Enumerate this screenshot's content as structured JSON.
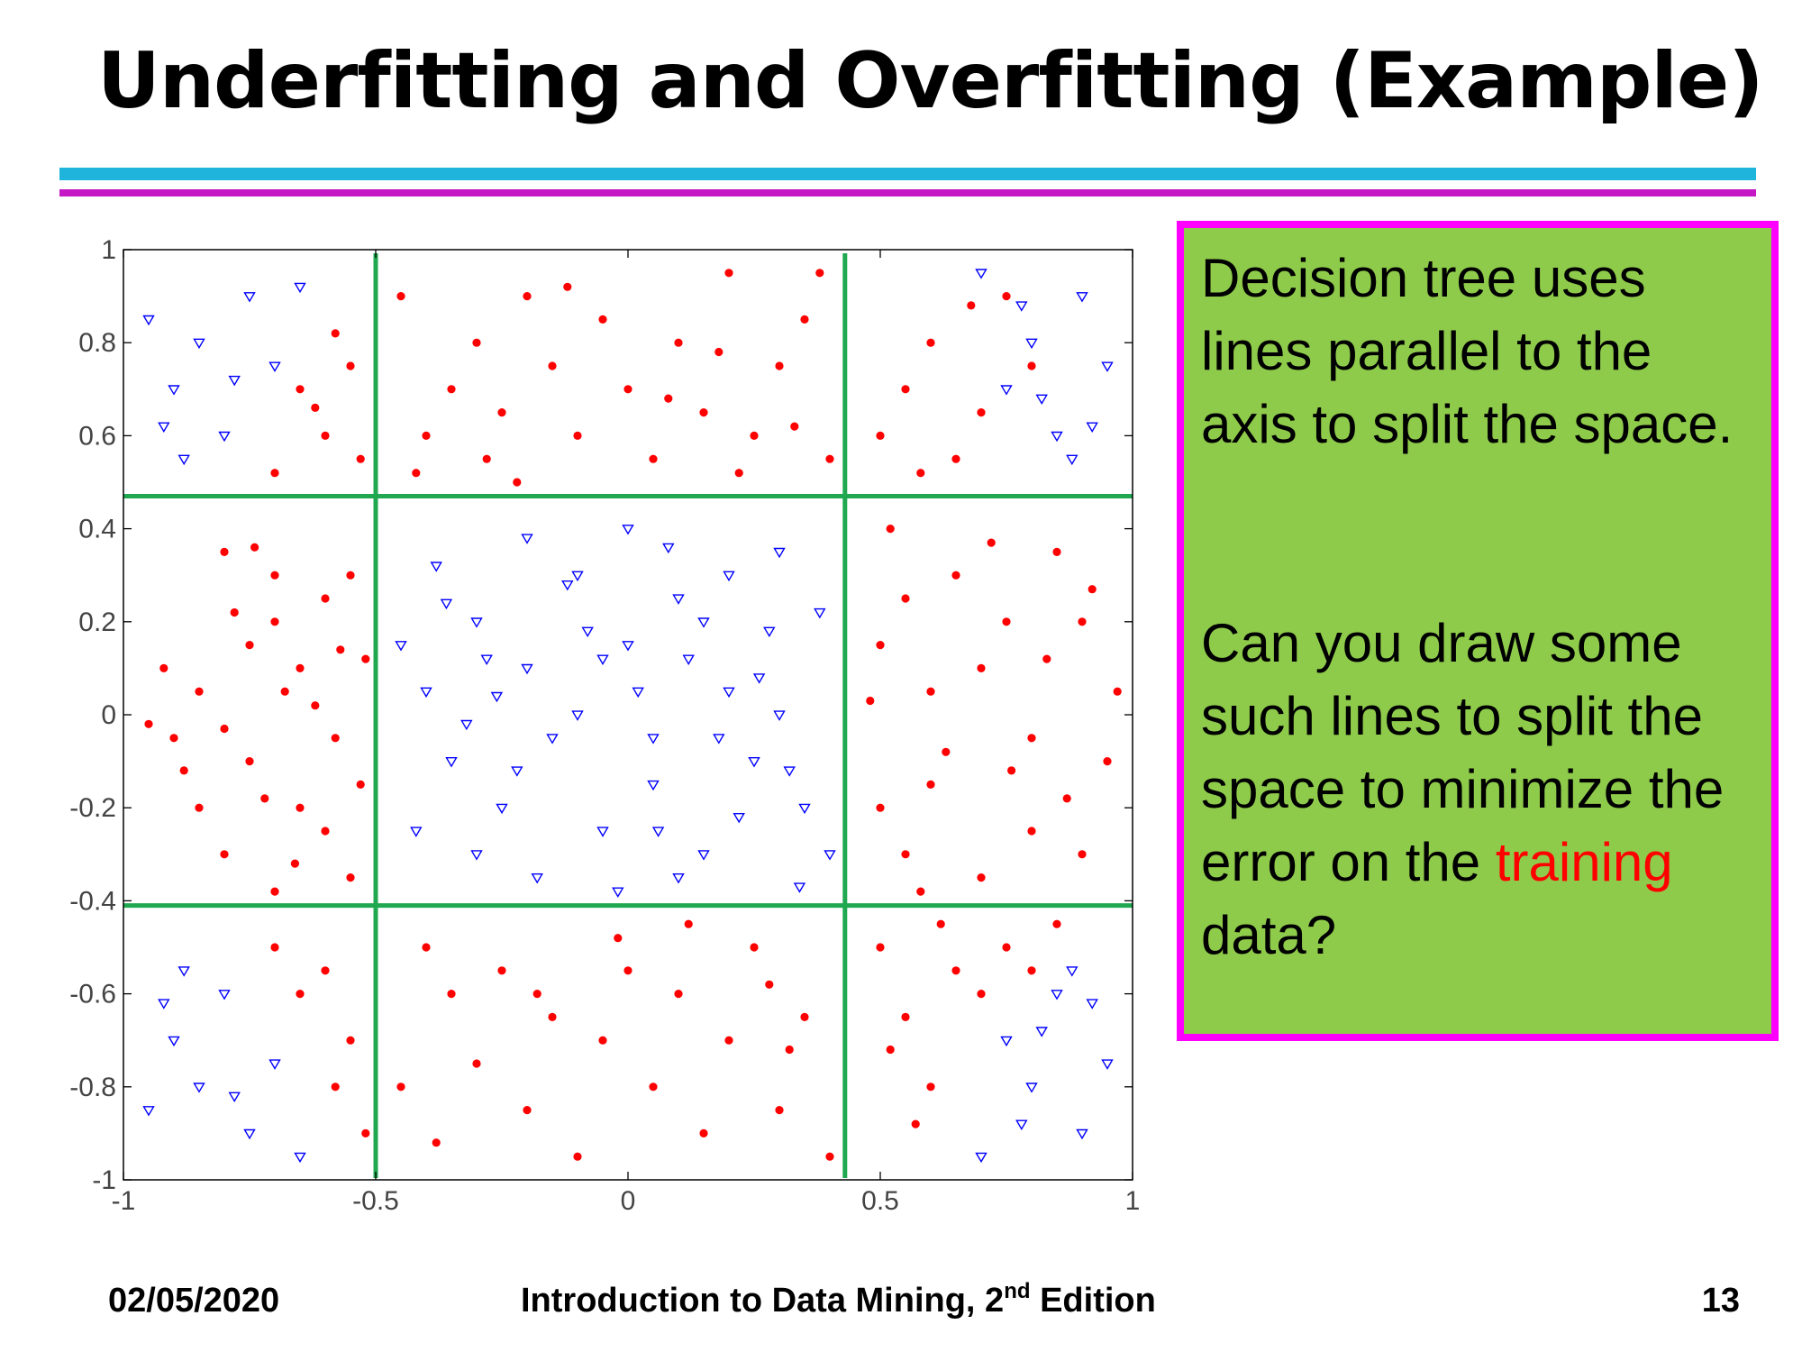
{
  "slide": {
    "title": "Underfitting and Overfitting (Example)",
    "accent_colors": {
      "cyan_rule": "#1eb4dc",
      "magenta_rule": "#c419c4"
    }
  },
  "callout": {
    "paragraph1": "Decision tree uses lines parallel to the axis to split the space.",
    "paragraph2_before": "Can you draw some such lines to split the space to minimize the error on the ",
    "highlight": "training",
    "paragraph2_after": " data?",
    "background_color": "#8fcb4b",
    "border_color": "#ff00ff",
    "highlight_color": "#ff0000"
  },
  "footer": {
    "date": "02/05/2020",
    "book_before": "Introduction to Data Mining, 2",
    "book_sup": "nd",
    "book_after": " Edition",
    "page": "13"
  },
  "chart_data": {
    "type": "scatter",
    "xlim": [
      -1,
      1
    ],
    "ylim": [
      -1,
      1
    ],
    "xticks": [
      "-1",
      "-0.5",
      "0",
      "0.5",
      "1"
    ],
    "yticks": [
      "1",
      "0.8",
      "0.6",
      "0.4",
      "0.2",
      "0",
      "-0.2",
      "-0.4",
      "-0.6",
      "-0.8",
      "-1"
    ],
    "grid": false,
    "split_lines": {
      "color": "#1fa84f",
      "vertical_x": [
        -0.5,
        0.43
      ],
      "horizontal_y": [
        0.47,
        -0.41
      ]
    },
    "series": [
      {
        "marker": "dot",
        "color": "#ff0000",
        "region_rule": "outside the central box in the middle row and middle column bands",
        "points": [
          [
            -0.75,
            0.15
          ],
          [
            -0.7,
            0.2
          ],
          [
            -0.65,
            0.1
          ],
          [
            -0.6,
            0.25
          ],
          [
            -0.55,
            0.3
          ],
          [
            -0.8,
            0.35
          ],
          [
            -0.85,
            0.05
          ],
          [
            -0.9,
            -0.05
          ],
          [
            -0.75,
            -0.1
          ],
          [
            -0.65,
            -0.2
          ],
          [
            -0.6,
            -0.25
          ],
          [
            -0.55,
            -0.35
          ],
          [
            -0.8,
            -0.3
          ],
          [
            -0.85,
            -0.2
          ],
          [
            -0.7,
            0.3
          ],
          [
            -0.72,
            -0.18
          ],
          [
            -0.62,
            0.02
          ],
          [
            -0.58,
            -0.05
          ],
          [
            -0.92,
            0.1
          ],
          [
            -0.88,
            -0.12
          ],
          [
            -0.68,
            0.05
          ],
          [
            -0.78,
            0.22
          ],
          [
            -0.8,
            -0.03
          ],
          [
            -0.66,
            -0.32
          ],
          [
            -0.74,
            0.36
          ],
          [
            -0.57,
            0.14
          ],
          [
            -0.52,
            0.12
          ],
          [
            -0.53,
            -0.15
          ],
          [
            -0.7,
            -0.38
          ],
          [
            -0.95,
            -0.02
          ],
          [
            -0.6,
            0.6
          ],
          [
            -0.65,
            0.7
          ],
          [
            -0.55,
            0.75
          ],
          [
            -0.7,
            0.52
          ],
          [
            -0.58,
            0.82
          ],
          [
            -0.62,
            0.66
          ],
          [
            -0.53,
            0.55
          ],
          [
            -0.6,
            -0.55
          ],
          [
            -0.55,
            -0.7
          ],
          [
            -0.65,
            -0.6
          ],
          [
            -0.58,
            -0.8
          ],
          [
            -0.52,
            -0.9
          ],
          [
            -0.7,
            -0.5
          ],
          [
            -0.4,
            0.6
          ],
          [
            -0.35,
            0.7
          ],
          [
            -0.3,
            0.8
          ],
          [
            -0.25,
            0.65
          ],
          [
            -0.2,
            0.9
          ],
          [
            -0.15,
            0.75
          ],
          [
            -0.1,
            0.6
          ],
          [
            -0.05,
            0.85
          ],
          [
            0.0,
            0.7
          ],
          [
            0.05,
            0.55
          ],
          [
            0.1,
            0.8
          ],
          [
            0.15,
            0.65
          ],
          [
            0.2,
            0.95
          ],
          [
            0.25,
            0.6
          ],
          [
            0.3,
            0.75
          ],
          [
            0.35,
            0.85
          ],
          [
            0.4,
            0.55
          ],
          [
            -0.45,
            0.9
          ],
          [
            -0.42,
            0.52
          ],
          [
            -0.28,
            0.55
          ],
          [
            -0.12,
            0.92
          ],
          [
            0.08,
            0.68
          ],
          [
            0.22,
            0.52
          ],
          [
            0.33,
            0.62
          ],
          [
            0.38,
            0.95
          ],
          [
            0.18,
            0.78
          ],
          [
            -0.22,
            0.5
          ],
          [
            -0.4,
            -0.5
          ],
          [
            -0.35,
            -0.6
          ],
          [
            -0.3,
            -0.75
          ],
          [
            -0.25,
            -0.55
          ],
          [
            -0.2,
            -0.85
          ],
          [
            -0.15,
            -0.65
          ],
          [
            -0.1,
            -0.95
          ],
          [
            -0.05,
            -0.7
          ],
          [
            0.0,
            -0.55
          ],
          [
            0.05,
            -0.8
          ],
          [
            0.1,
            -0.6
          ],
          [
            0.15,
            -0.9
          ],
          [
            0.2,
            -0.7
          ],
          [
            0.25,
            -0.5
          ],
          [
            0.3,
            -0.85
          ],
          [
            0.35,
            -0.65
          ],
          [
            0.4,
            -0.95
          ],
          [
            -0.45,
            -0.8
          ],
          [
            -0.38,
            -0.92
          ],
          [
            0.12,
            -0.45
          ],
          [
            -0.02,
            -0.48
          ],
          [
            0.28,
            -0.58
          ],
          [
            0.32,
            -0.72
          ],
          [
            -0.18,
            -0.6
          ],
          [
            0.5,
            0.15
          ],
          [
            0.55,
            0.25
          ],
          [
            0.6,
            0.05
          ],
          [
            0.65,
            0.3
          ],
          [
            0.7,
            0.1
          ],
          [
            0.75,
            0.2
          ],
          [
            0.8,
            -0.05
          ],
          [
            0.85,
            0.35
          ],
          [
            0.9,
            0.2
          ],
          [
            0.95,
            -0.1
          ],
          [
            0.5,
            -0.2
          ],
          [
            0.55,
            -0.3
          ],
          [
            0.6,
            -0.15
          ],
          [
            0.7,
            -0.35
          ],
          [
            0.8,
            -0.25
          ],
          [
            0.9,
            -0.3
          ],
          [
            0.52,
            0.4
          ],
          [
            0.63,
            -0.08
          ],
          [
            0.72,
            0.37
          ],
          [
            0.83,
            0.12
          ],
          [
            0.92,
            0.27
          ],
          [
            0.58,
            -0.38
          ],
          [
            0.76,
            -0.12
          ],
          [
            0.87,
            -0.18
          ],
          [
            0.97,
            0.05
          ],
          [
            0.48,
            0.03
          ],
          [
            0.5,
            0.6
          ],
          [
            0.55,
            0.7
          ],
          [
            0.6,
            0.8
          ],
          [
            0.65,
            0.55
          ],
          [
            0.7,
            0.65
          ],
          [
            0.75,
            0.9
          ],
          [
            0.8,
            0.75
          ],
          [
            0.58,
            0.52
          ],
          [
            0.68,
            0.88
          ],
          [
            0.5,
            -0.5
          ],
          [
            0.55,
            -0.65
          ],
          [
            0.6,
            -0.8
          ],
          [
            0.65,
            -0.55
          ],
          [
            0.7,
            -0.6
          ],
          [
            0.75,
            -0.5
          ],
          [
            0.8,
            -0.55
          ],
          [
            0.52,
            -0.72
          ],
          [
            0.62,
            -0.45
          ],
          [
            0.85,
            -0.45
          ],
          [
            0.57,
            -0.88
          ]
        ]
      },
      {
        "marker": "triangle-down",
        "color": "#0000ff",
        "points": [
          [
            -0.3,
            0.2
          ],
          [
            -0.2,
            0.1
          ],
          [
            -0.1,
            0.3
          ],
          [
            0.0,
            0.15
          ],
          [
            0.1,
            0.25
          ],
          [
            0.2,
            0.05
          ],
          [
            0.3,
            0.35
          ],
          [
            -0.35,
            -0.1
          ],
          [
            -0.25,
            -0.2
          ],
          [
            -0.15,
            -0.05
          ],
          [
            -0.05,
            -0.25
          ],
          [
            0.05,
            -0.15
          ],
          [
            0.15,
            -0.3
          ],
          [
            0.25,
            -0.1
          ],
          [
            0.35,
            -0.2
          ],
          [
            -0.4,
            0.05
          ],
          [
            -0.3,
            -0.3
          ],
          [
            0.0,
            0.4
          ],
          [
            0.1,
            -0.35
          ],
          [
            0.2,
            0.3
          ],
          [
            -0.1,
            0.0
          ],
          [
            0.3,
            0.0
          ],
          [
            -0.2,
            0.38
          ],
          [
            0.38,
            0.22
          ],
          [
            -0.42,
            -0.25
          ],
          [
            0.12,
            0.12
          ],
          [
            -0.28,
            0.12
          ],
          [
            0.22,
            -0.22
          ],
          [
            -0.08,
            0.18
          ],
          [
            0.05,
            -0.05
          ],
          [
            -0.45,
            0.15
          ],
          [
            0.4,
            -0.3
          ],
          [
            -0.18,
            -0.35
          ],
          [
            0.28,
            0.18
          ],
          [
            -0.38,
            0.32
          ],
          [
            0.08,
            0.36
          ],
          [
            0.18,
            -0.05
          ],
          [
            -0.32,
            -0.02
          ],
          [
            -0.02,
            -0.38
          ],
          [
            0.34,
            -0.37
          ],
          [
            -0.12,
            0.28
          ],
          [
            0.02,
            0.05
          ],
          [
            -0.22,
            -0.12
          ],
          [
            0.26,
            0.08
          ],
          [
            -0.05,
            0.12
          ],
          [
            0.15,
            0.2
          ],
          [
            -0.36,
            0.24
          ],
          [
            0.32,
            -0.12
          ],
          [
            -0.26,
            0.04
          ],
          [
            0.06,
            -0.25
          ],
          [
            -0.85,
            0.8
          ],
          [
            -0.8,
            0.6
          ],
          [
            -0.75,
            0.9
          ],
          [
            -0.9,
            0.7
          ],
          [
            -0.7,
            0.75
          ],
          [
            -0.95,
            0.85
          ],
          [
            -0.65,
            0.92
          ],
          [
            -0.88,
            0.55
          ],
          [
            -0.78,
            0.72
          ],
          [
            -0.92,
            0.62
          ],
          [
            -0.85,
            -0.8
          ],
          [
            -0.8,
            -0.6
          ],
          [
            -0.75,
            -0.9
          ],
          [
            -0.9,
            -0.7
          ],
          [
            -0.7,
            -0.75
          ],
          [
            -0.95,
            -0.85
          ],
          [
            -0.65,
            -0.95
          ],
          [
            -0.88,
            -0.55
          ],
          [
            -0.78,
            -0.82
          ],
          [
            -0.92,
            -0.62
          ],
          [
            0.8,
            0.8
          ],
          [
            0.85,
            0.6
          ],
          [
            0.9,
            0.9
          ],
          [
            0.75,
            0.7
          ],
          [
            0.95,
            0.75
          ],
          [
            0.7,
            0.95
          ],
          [
            0.88,
            0.55
          ],
          [
            0.82,
            0.68
          ],
          [
            0.92,
            0.62
          ],
          [
            0.78,
            0.88
          ],
          [
            0.8,
            -0.8
          ],
          [
            0.85,
            -0.6
          ],
          [
            0.9,
            -0.9
          ],
          [
            0.75,
            -0.7
          ],
          [
            0.95,
            -0.75
          ],
          [
            0.7,
            -0.95
          ],
          [
            0.88,
            -0.55
          ],
          [
            0.82,
            -0.68
          ],
          [
            0.92,
            -0.62
          ],
          [
            0.78,
            -0.88
          ]
        ]
      }
    ]
  }
}
